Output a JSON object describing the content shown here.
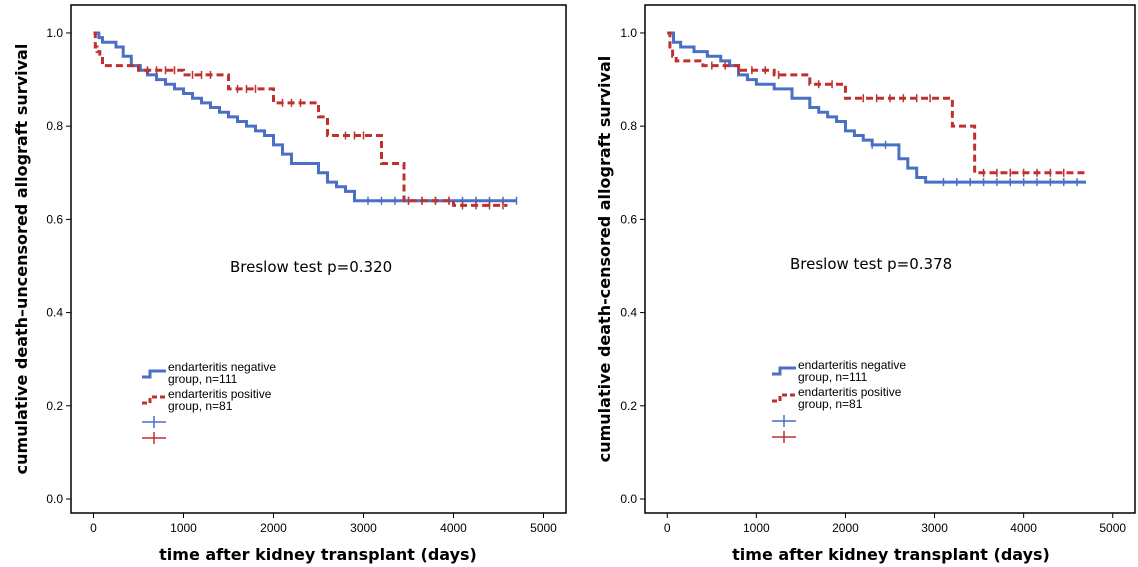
{
  "style": {
    "negative_color": "#4a6fc7",
    "positive_color": "#c0302e",
    "frame_color": "#000000"
  },
  "chart_data": [
    {
      "type": "line",
      "subtype": "kaplan-meier step",
      "title": "",
      "xlabel": "time after kidney transplant (days)",
      "ylabel": "cumulative death–uncensored allograft survival",
      "xlim": [
        -250,
        5250
      ],
      "ylim": [
        -0.03,
        1.06
      ],
      "xticks": [
        0,
        1000,
        2000,
        3000,
        4000,
        5000
      ],
      "xtick_labels": [
        "0",
        "1000",
        "2000",
        "3000",
        "4000",
        "5000"
      ],
      "yticks": [
        0.0,
        0.2,
        0.4,
        0.6,
        0.8,
        1.0
      ],
      "ytick_labels": [
        "0.0",
        "0.2",
        "0.4",
        "0.6",
        "0.8",
        "1.0"
      ],
      "grid": false,
      "legend_position": "bottom-left",
      "annotation": "Breslow test p=0.320",
      "series": [
        {
          "name": "endarteritis negative group, n=111",
          "line_style": "solid",
          "color": "#4a6fc7",
          "x": [
            0,
            60,
            100,
            250,
            330,
            420,
            520,
            600,
            700,
            800,
            900,
            1000,
            1100,
            1200,
            1300,
            1400,
            1500,
            1600,
            1700,
            1800,
            1900,
            2000,
            2100,
            2200,
            2300,
            2400,
            2500,
            2600,
            2700,
            2800,
            2900,
            3000,
            4700
          ],
          "y": [
            1.0,
            0.99,
            0.98,
            0.97,
            0.95,
            0.93,
            0.92,
            0.91,
            0.9,
            0.89,
            0.88,
            0.87,
            0.86,
            0.85,
            0.84,
            0.83,
            0.82,
            0.81,
            0.8,
            0.79,
            0.78,
            0.76,
            0.74,
            0.72,
            0.72,
            0.72,
            0.7,
            0.68,
            0.67,
            0.66,
            0.64,
            0.64,
            0.64
          ],
          "censored_x": [
            3050,
            3200,
            3350,
            3500,
            3650,
            3800,
            3950,
            4100,
            4250,
            4400,
            4550,
            4700
          ]
        },
        {
          "name": "endarteritis positive group, n=81",
          "line_style": "dashed",
          "color": "#c0302e",
          "x": [
            0,
            20,
            40,
            70,
            100,
            500,
            1000,
            1500,
            2000,
            2500,
            2600,
            3000,
            3200,
            3400,
            3450,
            4000,
            4600
          ],
          "y": [
            1.0,
            0.97,
            0.96,
            0.95,
            0.93,
            0.92,
            0.91,
            0.88,
            0.85,
            0.82,
            0.78,
            0.78,
            0.72,
            0.72,
            0.64,
            0.63,
            0.63
          ],
          "censored_x": [
            600,
            700,
            800,
            900,
            1100,
            1200,
            1300,
            1600,
            1700,
            1800,
            2100,
            2200,
            2300,
            2800,
            2900,
            3000,
            3500,
            3650,
            3800,
            3950,
            4100,
            4250,
            4400,
            4550
          ]
        }
      ],
      "legend_entries": [
        {
          "line1": "endarteritis negative",
          "line2": "group, n=111"
        },
        {
          "line1": "endarteritis positive",
          "line2": "group, n=81"
        }
      ]
    },
    {
      "type": "line",
      "subtype": "kaplan-meier step",
      "title": "",
      "xlabel": "time after kidney transplant (days)",
      "ylabel": "cumulative death-censored allograft survival",
      "xlim": [
        -250,
        5250
      ],
      "ylim": [
        -0.03,
        1.06
      ],
      "xticks": [
        0,
        1000,
        2000,
        3000,
        4000,
        5000
      ],
      "xtick_labels": [
        "0",
        "1000",
        "2000",
        "3000",
        "4000",
        "5000"
      ],
      "yticks": [
        0.0,
        0.2,
        0.4,
        0.6,
        0.8,
        1.0
      ],
      "ytick_labels": [
        "0.0",
        "0.2",
        "0.4",
        "0.6",
        "0.8",
        "1.0"
      ],
      "grid": false,
      "legend_position": "bottom-left",
      "annotation": "Breslow test p=0.378",
      "series": [
        {
          "name": "endarteritis negative group, n=111",
          "line_style": "solid",
          "color": "#4a6fc7",
          "x": [
            0,
            70,
            150,
            300,
            450,
            600,
            700,
            800,
            900,
            1000,
            1200,
            1400,
            1600,
            1700,
            1800,
            1900,
            2000,
            2100,
            2200,
            2300,
            2600,
            2700,
            2800,
            2900,
            3000,
            4700
          ],
          "y": [
            1.0,
            0.98,
            0.97,
            0.96,
            0.95,
            0.94,
            0.93,
            0.91,
            0.9,
            0.89,
            0.88,
            0.86,
            0.84,
            0.83,
            0.82,
            0.81,
            0.79,
            0.78,
            0.77,
            0.76,
            0.73,
            0.71,
            0.69,
            0.68,
            0.68,
            0.68
          ],
          "censored_x": [
            2300,
            2450,
            3100,
            3250,
            3400,
            3550,
            3700,
            3850,
            4000,
            4150,
            4300,
            4450,
            4600
          ]
        },
        {
          "name": "endarteritis positive group, n=81",
          "line_style": "dashed",
          "color": "#c0302e",
          "x": [
            0,
            30,
            60,
            100,
            400,
            800,
            1200,
            1600,
            1950,
            2000,
            3150,
            3200,
            3400,
            3450,
            4700
          ],
          "y": [
            1.0,
            0.97,
            0.95,
            0.94,
            0.93,
            0.92,
            0.91,
            0.89,
            0.89,
            0.86,
            0.86,
            0.8,
            0.8,
            0.7,
            0.7
          ],
          "censored_x": [
            500,
            650,
            800,
            950,
            1100,
            1250,
            1700,
            1850,
            2200,
            2350,
            2500,
            2650,
            2800,
            2950,
            3550,
            3700,
            3850,
            4000,
            4150,
            4300,
            4450
          ]
        }
      ],
      "legend_entries": [
        {
          "line1": "endarteritis negative",
          "line2": "group, n=111"
        },
        {
          "line1": "endarteritis positive",
          "line2": "group, n=81"
        }
      ]
    }
  ]
}
